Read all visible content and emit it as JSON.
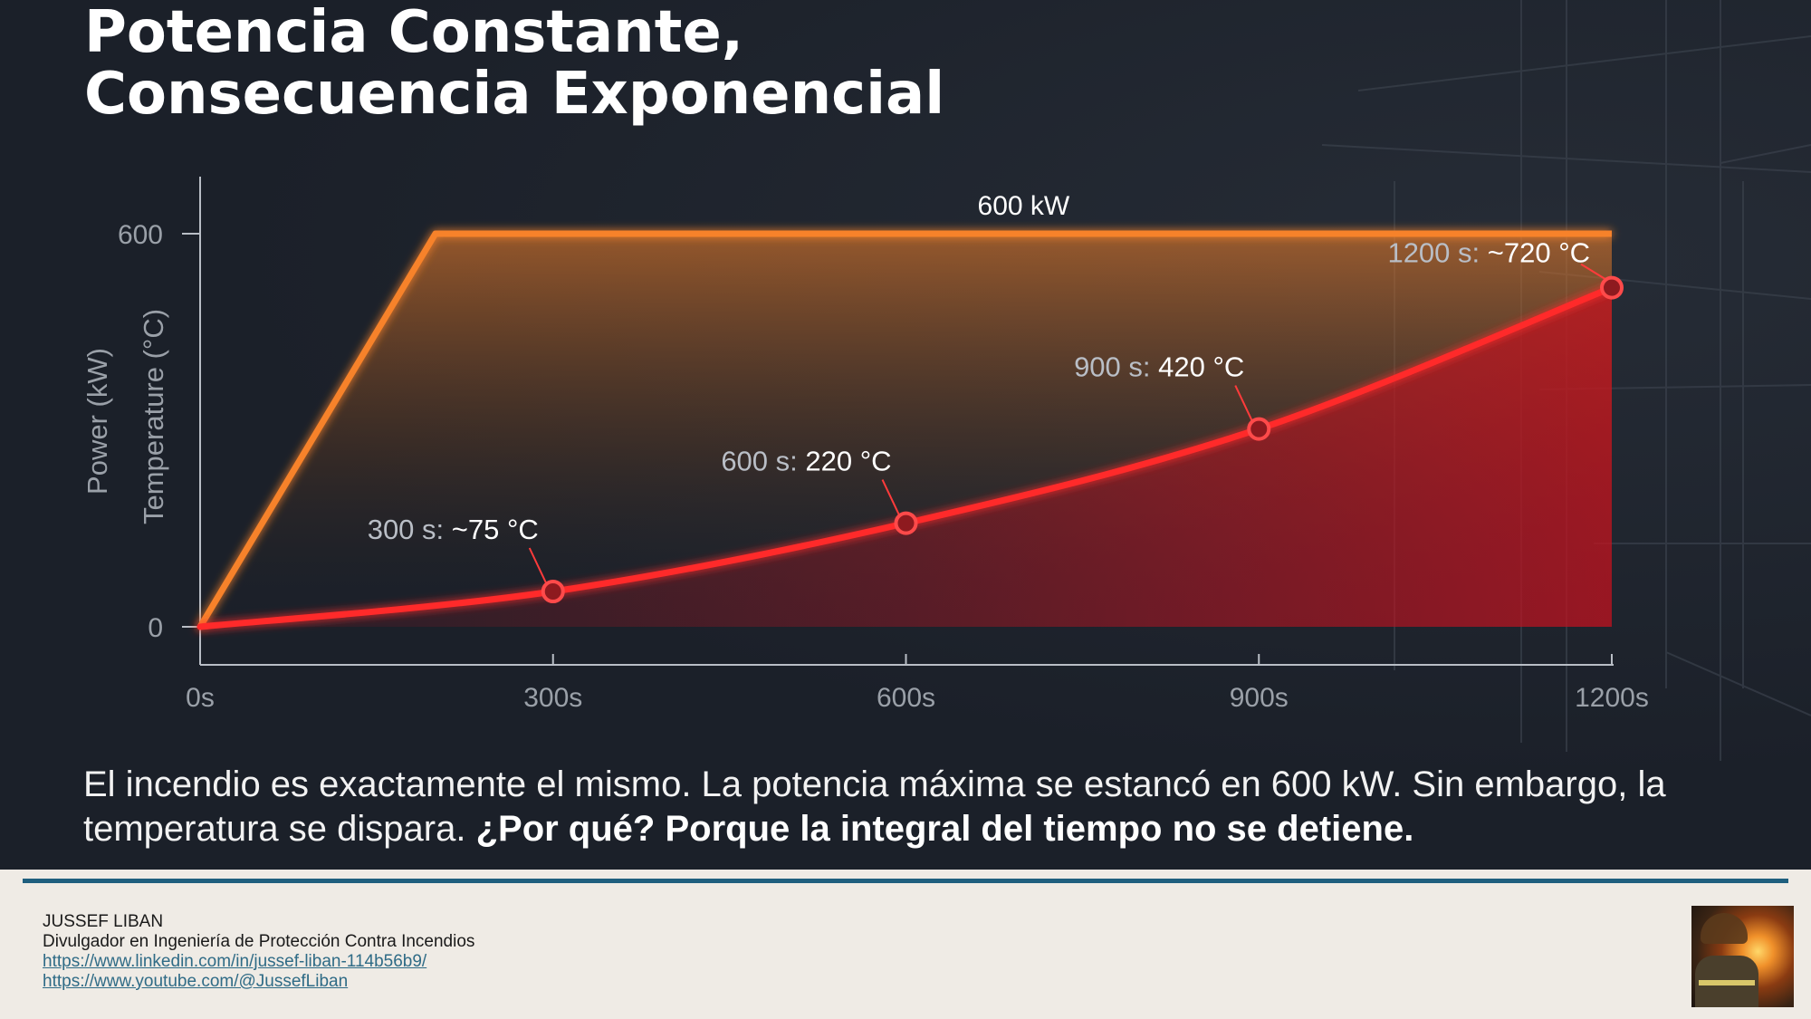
{
  "title": {
    "line1": "Potencia Constante,",
    "line2": "Consecuencia Exponencial"
  },
  "chart_data": {
    "type": "line",
    "ylabel": "Power (kW)",
    "ylabel2": "Temperature (°C)",
    "x_ticks": [
      "0s",
      "300s",
      "600s",
      "900s",
      "1200s"
    ],
    "x_values": [
      0,
      300,
      600,
      900,
      1200
    ],
    "y_ticks": [
      "0",
      "600"
    ],
    "xlim": [
      0,
      1200
    ],
    "ylim_power": [
      0,
      600
    ],
    "ylim_temperature": [
      0,
      850
    ],
    "power_label": "600 kW",
    "series": [
      {
        "name": "Power (kW)",
        "color": "#f7822a",
        "points": [
          [
            0,
            0
          ],
          [
            200,
            600
          ],
          [
            1200,
            600
          ]
        ]
      },
      {
        "name": "Temperature (°C)",
        "color": "#ff2b2b",
        "points": [
          [
            0,
            0
          ],
          [
            300,
            75
          ],
          [
            600,
            220
          ],
          [
            900,
            420
          ],
          [
            1200,
            720
          ]
        ]
      }
    ],
    "annotations": [
      {
        "x": 300,
        "y": 75,
        "label_prefix": "300 s:",
        "label_value": "~75 °C"
      },
      {
        "x": 600,
        "y": 220,
        "label_prefix": "600 s:",
        "label_value": "220 °C"
      },
      {
        "x": 900,
        "y": 420,
        "label_prefix": "900 s:",
        "label_value": "420 °C"
      },
      {
        "x": 1200,
        "y": 720,
        "label_prefix": "1200 s:",
        "label_value": "~720 °C"
      }
    ]
  },
  "caption": {
    "text": "El incendio es exactamente el mismo. La potencia máxima se estancó en 600 kW. Sin embargo, la temperatura se dispara.",
    "emphasis": "¿Por qué? Porque la integral del tiempo no se detiene."
  },
  "footer": {
    "name": "JUSSEF LIBAN",
    "role": "Divulgador en Ingeniería de Protección Contra Incendios",
    "linkedin": "https://www.linkedin.com/in/jussef-liban-114b56b9/",
    "youtube": "https://www.youtube.com/@JussefLiban"
  }
}
